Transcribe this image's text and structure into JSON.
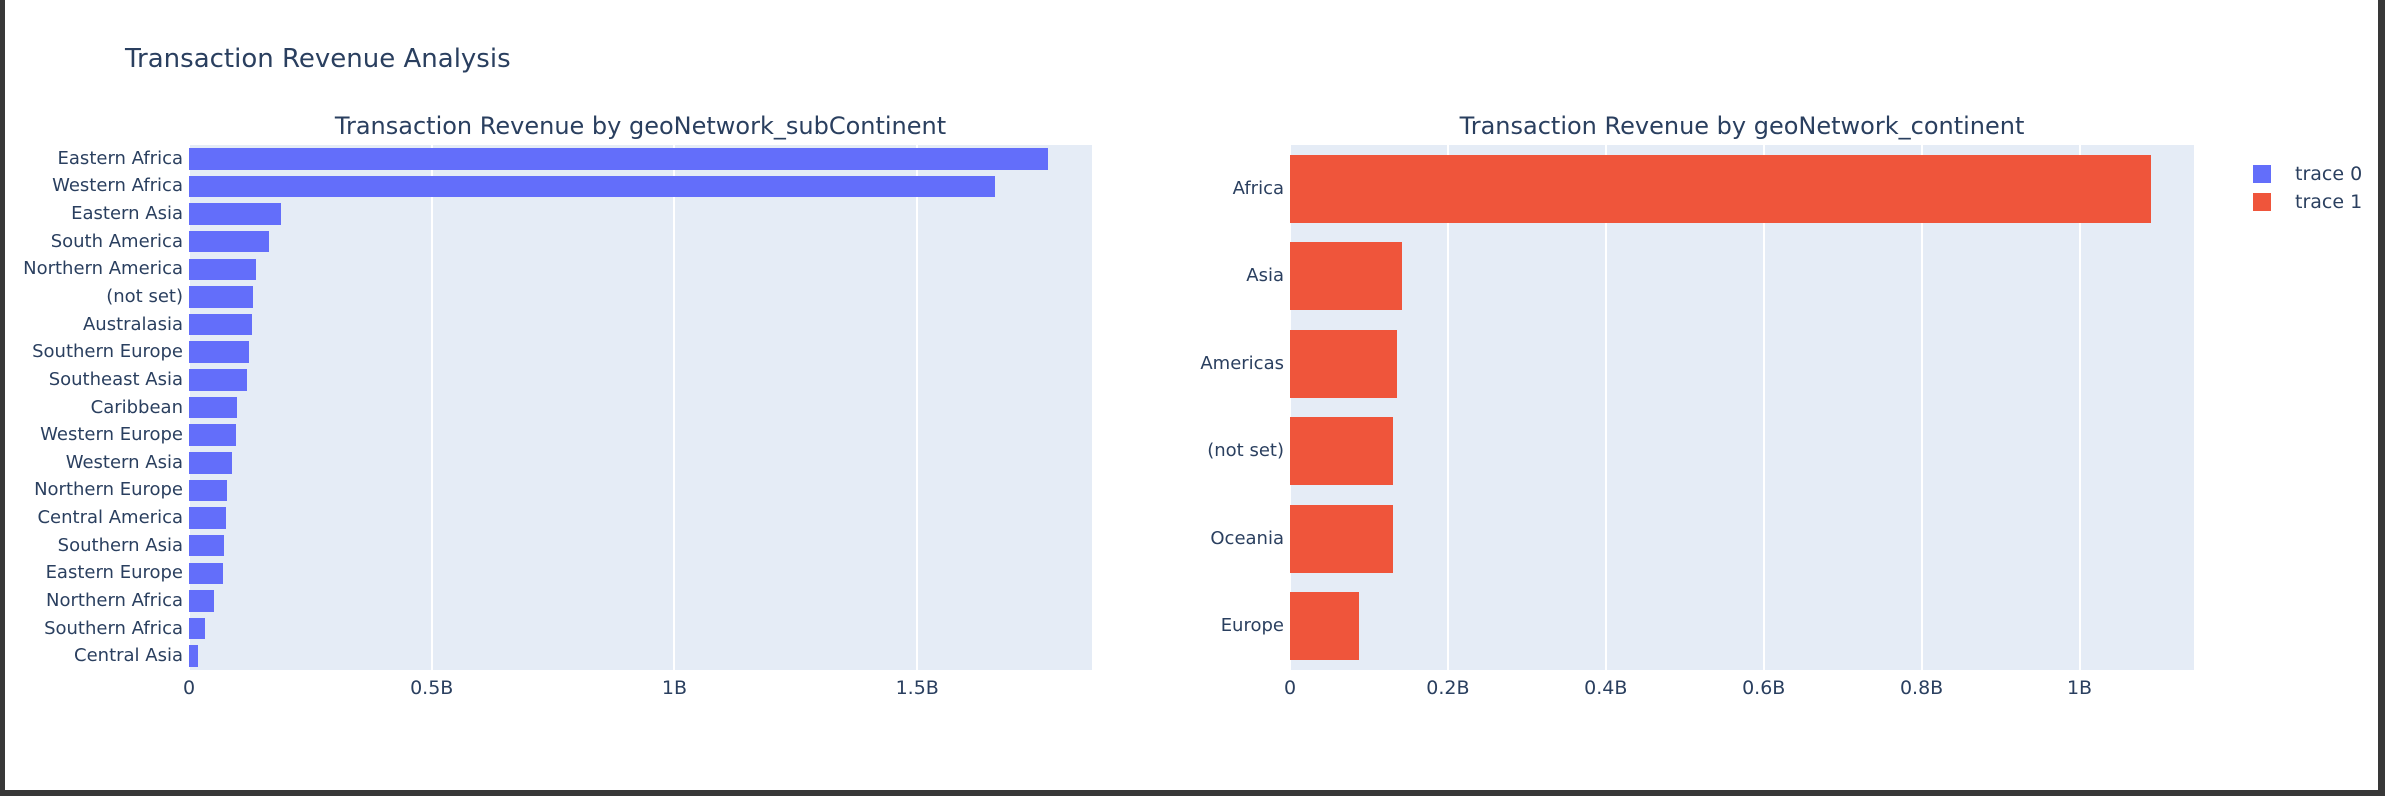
{
  "page": {
    "title": "Transaction Revenue Analysis",
    "background": "#ffffff",
    "frame_color": "#383838",
    "text_color": "#2a3f5f",
    "plot_background": "#E5ECF6",
    "gridline_color": "#ffffff"
  },
  "legend": {
    "position": "top-right",
    "items": [
      {
        "label": "trace 0",
        "color": "#636EFA"
      },
      {
        "label": "trace 1",
        "color": "#EF553B"
      }
    ]
  },
  "chart_data": [
    {
      "type": "bar",
      "orientation": "horizontal",
      "title": "Transaction Revenue by geoNetwork_subContinent",
      "series_name": "trace 0",
      "color": "#636EFA",
      "unit": "B (billions)",
      "categories": [
        "Eastern Africa",
        "Western Africa",
        "Eastern Asia",
        "South America",
        "Northern America",
        "(not set)",
        "Australasia",
        "Southern Europe",
        "Southeast Asia",
        "Caribbean",
        "Western Europe",
        "Western Asia",
        "Northern Europe",
        "Central America",
        "Southern Asia",
        "Eastern Europe",
        "Northern Africa",
        "Southern Africa",
        "Central Asia"
      ],
      "values_billions": [
        1.77,
        1.66,
        0.19,
        0.165,
        0.137,
        0.131,
        0.13,
        0.123,
        0.119,
        0.099,
        0.097,
        0.088,
        0.078,
        0.077,
        0.073,
        0.07,
        0.052,
        0.033,
        0.018
      ],
      "x_ticks": [
        {
          "label": "0",
          "value": 0
        },
        {
          "label": "0.5B",
          "value": 0.5
        },
        {
          "label": "1B",
          "value": 1.0
        },
        {
          "label": "1.5B",
          "value": 1.5
        }
      ],
      "xlim": [
        0,
        1.86
      ],
      "grid": true,
      "plot_bg": "#E5ECF6"
    },
    {
      "type": "bar",
      "orientation": "horizontal",
      "title": "Transaction Revenue by geoNetwork_continent",
      "series_name": "trace 1",
      "color": "#EF553B",
      "unit": "B (billions)",
      "categories": [
        "Africa",
        "Asia",
        "Americas",
        "(not set)",
        "Oceania",
        "Europe"
      ],
      "values_billions": [
        1.09,
        0.142,
        0.135,
        0.131,
        0.13,
        0.087
      ],
      "x_ticks": [
        {
          "label": "0",
          "value": 0
        },
        {
          "label": "0.2B",
          "value": 0.2
        },
        {
          "label": "0.4B",
          "value": 0.4
        },
        {
          "label": "0.6B",
          "value": 0.6
        },
        {
          "label": "0.8B",
          "value": 0.8
        },
        {
          "label": "1B",
          "value": 1.0
        }
      ],
      "xlim": [
        0,
        1.145
      ],
      "grid": true,
      "plot_bg": "#E5ECF6"
    }
  ]
}
